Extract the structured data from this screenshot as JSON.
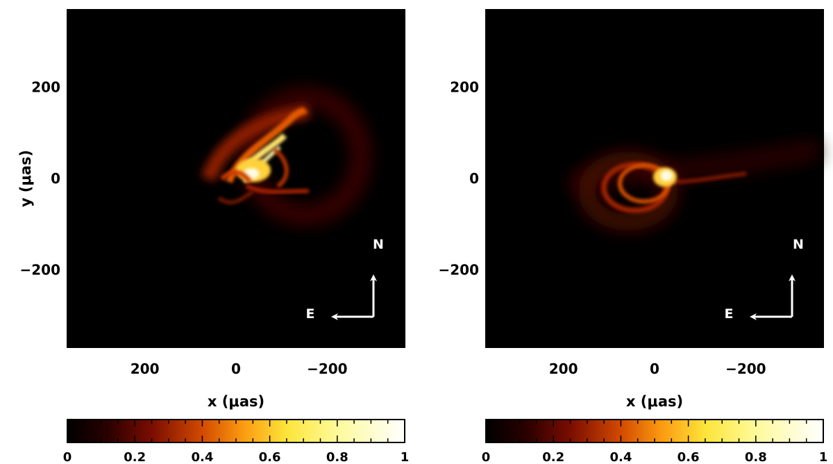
{
  "chart_data": [
    {
      "type": "heatmap",
      "panel": "left",
      "xlabel": "x (μas)",
      "ylabel": "y (μas)",
      "xlim": [
        370,
        -370
      ],
      "ylim": [
        -370,
        370
      ],
      "x_ticks": [
        200,
        0,
        -200
      ],
      "x_tick_labels": [
        "200",
        "0",
        "−200"
      ],
      "y_ticks": [
        200,
        0,
        -200
      ],
      "y_tick_labels": [
        "200",
        "0",
        "−200"
      ],
      "compass": {
        "north_label": "N",
        "east_label": "E"
      },
      "colorbar": {
        "range": [
          0,
          1
        ],
        "ticks": [
          0,
          0.2,
          0.4,
          0.6,
          0.8,
          1
        ],
        "tick_labels": [
          "0",
          "0.2",
          "0.4",
          "0.6",
          "0.8",
          "1"
        ]
      },
      "description_values": {
        "peak_position": [
          -40,
          30
        ],
        "background": 0
      }
    },
    {
      "type": "heatmap",
      "panel": "right",
      "xlabel": "x (μas)",
      "ylabel": "",
      "xlim": [
        370,
        -370
      ],
      "ylim": [
        -370,
        370
      ],
      "x_ticks": [
        200,
        0,
        -200
      ],
      "x_tick_labels": [
        "200",
        "0",
        "−200"
      ],
      "y_ticks": [
        200,
        0,
        -200
      ],
      "y_tick_labels": [
        "200",
        "0",
        "−200"
      ],
      "compass": {
        "north_label": "N",
        "east_label": "E"
      },
      "colorbar": {
        "range": [
          0,
          1
        ],
        "ticks": [
          0,
          0.2,
          0.4,
          0.6,
          0.8,
          1
        ],
        "tick_labels": [
          "0",
          "0.2",
          "0.4",
          "0.6",
          "0.8",
          "1"
        ]
      },
      "description_values": {
        "peak_position": [
          -20,
          5
        ],
        "background": 0
      }
    }
  ]
}
